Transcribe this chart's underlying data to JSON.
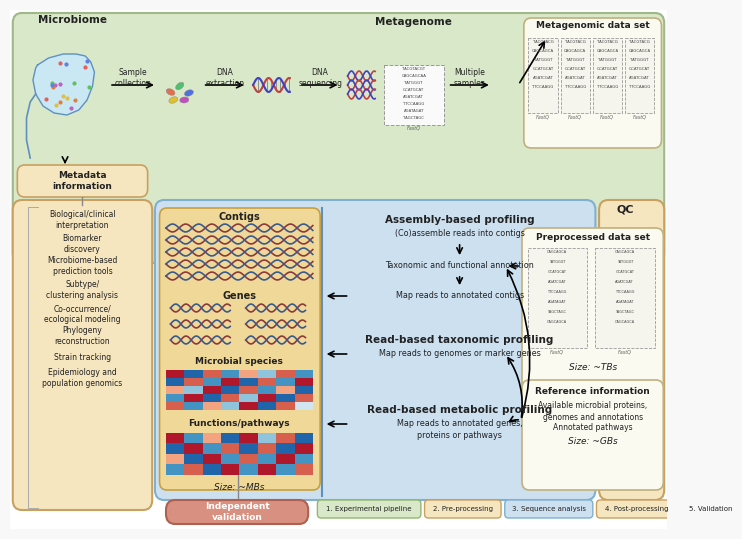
{
  "bg_color": "#f8f8f8",
  "green_bg": "#d8e8c8",
  "green_border": "#a0b888",
  "yellow_bg": "#f5e6c0",
  "yellow_border": "#c8a060",
  "blue_bg": "#cce0f0",
  "blue_border": "#80b0d0",
  "orange_inner_bg": "#f0d898",
  "orange_inner_border": "#c8a040",
  "salmon_bg": "#d89080",
  "salmon_border": "#b06050",
  "white_box": "#fafaf0",
  "white_box_border": "#c0b080",
  "legend": [
    {
      "label": "1. Experimental pipeline",
      "fc": "#d8e8c8",
      "ec": "#90b870"
    },
    {
      "label": "2. Pre-processing",
      "fc": "#f5e6c0",
      "ec": "#c8a060"
    },
    {
      "label": "3. Sequence analysis",
      "fc": "#cce0f0",
      "ec": "#80b0d0"
    },
    {
      "label": "4. Post-processing",
      "fc": "#f5e6c0",
      "ec": "#c8a060"
    },
    {
      "label": "5. Validation",
      "fc": "#d89080",
      "ec": "#b06050"
    }
  ]
}
